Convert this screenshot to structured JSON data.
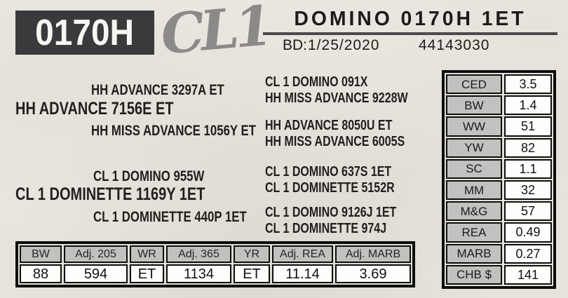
{
  "card": {
    "tag_number": "0170H",
    "brand_logo": "CL1",
    "name": "DOMINO 0170H 1ET",
    "bd_label": "BD:",
    "birth_date": "1/25/2020",
    "registration_number": "44143030"
  },
  "pedigree": {
    "sire": "HH ADVANCE 7156E ET",
    "sire_sire": "HH ADVANCE 3297A ET",
    "sire_dam": "HH MISS ADVANCE 1056Y ET",
    "sire_sire_sire": "CL 1 DOMINO 091X",
    "sire_sire_dam": "HH MISS ADVANCE 9228W",
    "sire_dam_sire": "HH ADVANCE 8050U ET",
    "sire_dam_dam": "HH MISS ADVANCE 6005S",
    "dam": "CL 1 DOMINETTE 1169Y 1ET",
    "dam_sire": "CL 1 DOMINO 955W",
    "dam_dam": "CL 1 DOMINETTE 440P 1ET",
    "dam_sire_sire": "CL 1 DOMINO 637S 1ET",
    "dam_sire_dam": "CL 1 DOMINETTE 5152R",
    "dam_dam_sire": "CL 1 DOMINO 9126J 1ET",
    "dam_dam_dam": "CL 1 DOMINETTE 974J"
  },
  "epd_table": {
    "rows": [
      {
        "label": "CED",
        "value": "3.5"
      },
      {
        "label": "BW",
        "value": "1.4"
      },
      {
        "label": "WW",
        "value": "51"
      },
      {
        "label": "YW",
        "value": "82"
      },
      {
        "label": "SC",
        "value": "1.1"
      },
      {
        "label": "MM",
        "value": "32"
      },
      {
        "label": "M&G",
        "value": "57"
      },
      {
        "label": "REA",
        "value": "0.49"
      },
      {
        "label": "MARB",
        "value": "0.27"
      },
      {
        "label": "CHB $",
        "value": "141"
      }
    ]
  },
  "performance_table": {
    "headers": [
      "BW",
      "Adj. 205",
      "WR",
      "Adj. 365",
      "YR",
      "Adj. REA",
      "Adj. MARB"
    ],
    "values": [
      "88",
      "594",
      "ET",
      "1134",
      "ET",
      "11.14",
      "3.69"
    ]
  },
  "colors": {
    "dark_accent": "#3a3a3c",
    "cell_gray": "#c1c1c0",
    "paper": "#eae7e0",
    "logo_gray": "#8b8a88"
  }
}
